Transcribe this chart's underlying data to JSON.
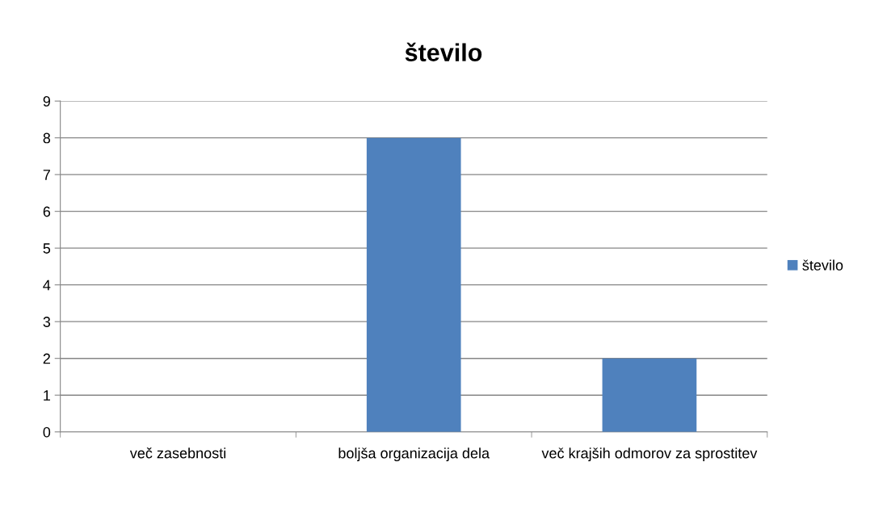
{
  "chart_data": {
    "type": "bar",
    "title": "število",
    "categories": [
      "več zasebnosti",
      "boljša organizacija dela",
      "več krajših odmorov za sprostitev"
    ],
    "series": [
      {
        "name": "število",
        "color": "#4f81bd",
        "values": [
          0,
          8,
          2
        ]
      }
    ],
    "ylim": [
      0,
      9
    ],
    "yticks": [
      0,
      1,
      2,
      3,
      4,
      5,
      6,
      7,
      8,
      9
    ],
    "grid": "y",
    "legend": "right"
  }
}
